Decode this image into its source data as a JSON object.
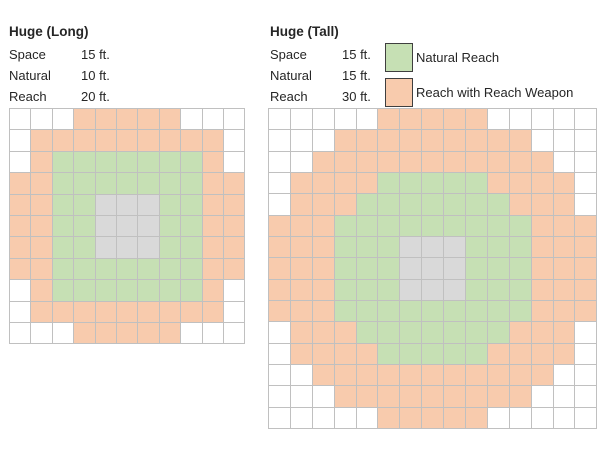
{
  "colors": {
    "natural_reach_green": "#C6E0B4",
    "reach_weapon_orange": "#F8CBAD",
    "creature_gray": "#D9D9D9",
    "grid_line": "#C0C0C0",
    "cell_white": "#FFFFFF",
    "text": "#262626",
    "swatch_border": "#3F3F3F"
  },
  "legend": {
    "items": [
      {
        "key": "G",
        "label": "Natural Reach",
        "color": "#C6E0B4"
      },
      {
        "key": "O",
        "label": "Reach with Reach Weapon",
        "color": "#F8CBAD"
      }
    ]
  },
  "cell_legend": {
    "W": "empty",
    "O": "reach-with-reach-weapon",
    "G": "natural-reach",
    "C": "creature-space"
  },
  "panels": [
    {
      "title": "Huge (Long)",
      "stats": [
        {
          "label": "Space",
          "value": "15 ft."
        },
        {
          "label": "Natural",
          "value": "10 ft."
        },
        {
          "label": "Reach",
          "value": "20 ft."
        }
      ],
      "grid": {
        "columns": 11,
        "rows": 11,
        "cells": [
          "WWWOOOOOWWW",
          "WOOOOOOOOOW",
          "WOGGGGGGGOW",
          "OOGGGGGGGOO",
          "OOGGCCCGGOO",
          "OOGGCCCGGOO",
          "OOGGCCCGGOO",
          "OOGGGGGGGOO",
          "WOGGGGGGGOW",
          "WOOOOOOOOOW",
          "WWWOOOOOWWW"
        ]
      }
    },
    {
      "title": "Huge (Tall)",
      "stats": [
        {
          "label": "Space",
          "value": "15 ft."
        },
        {
          "label": "Natural",
          "value": "15 ft."
        },
        {
          "label": "Reach",
          "value": "30 ft."
        }
      ],
      "grid": {
        "columns": 15,
        "rows": 15,
        "cells": [
          "WWWWWOOOOOWWWWW",
          "WWWOOOOOOOOOWWW",
          "WWOOOOOOOOOOOWW",
          "WOOOOGGGGGOOOOW",
          "WOOOGGGGGGGOOOW",
          "OOOGGGGGGGGGOOO",
          "OOOGGGCCCGGGOOO",
          "OOOGGGCCCGGGOOO",
          "OOOGGGCCCGGGOOO",
          "OOOGGGGGGGGGOOO",
          "WOOOGGGGGGGOOOW",
          "WOOOOGGGGGOOOOW",
          "WWOOOOOOOOOOOWW",
          "WWWOOOOOOOOOWWW",
          "WWWWWOOOOOWWWWW"
        ]
      }
    }
  ]
}
